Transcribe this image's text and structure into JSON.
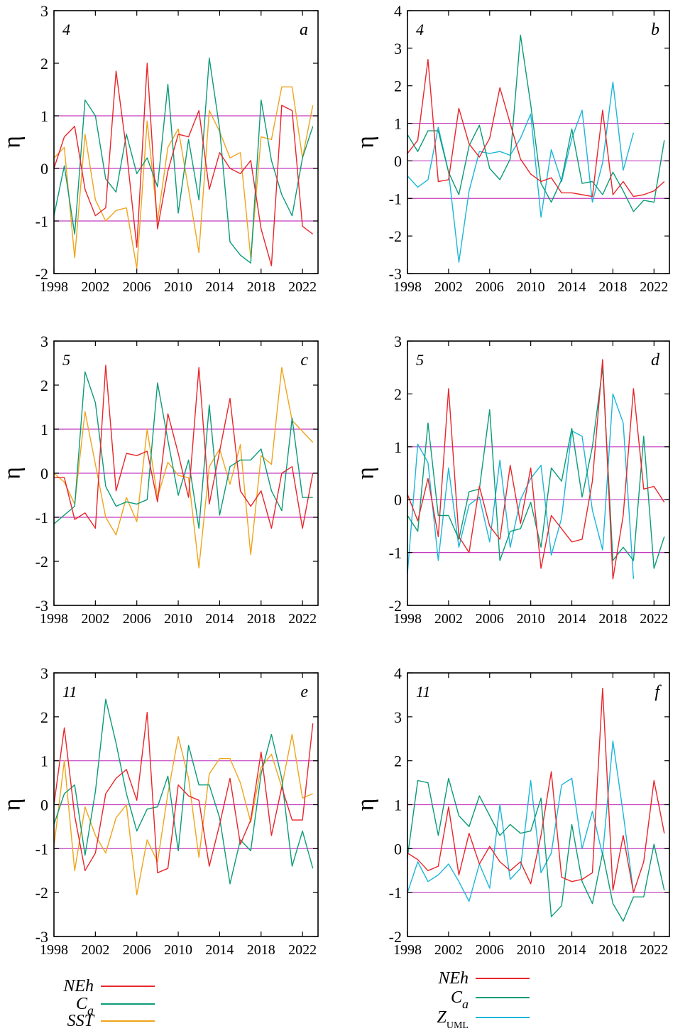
{
  "figure": {
    "background": "#ffffff"
  },
  "colors": {
    "NEh": "#e8262a",
    "Ca": "#0b9b78",
    "SST": "#f0a41c",
    "ZUML": "#1cb6d8",
    "hline": "#c33cc0",
    "axis": "#000000"
  },
  "legend_left": [
    {
      "main": "NEh",
      "sub": "",
      "color_key": "NEh"
    },
    {
      "main": "C",
      "sub": "a",
      "color_key": "Ca"
    },
    {
      "main": "SST",
      "sub": "",
      "color_key": "SST"
    }
  ],
  "legend_right": [
    {
      "main": "NEh",
      "sub": "",
      "color_key": "NEh"
    },
    {
      "main": "C",
      "sub": "a",
      "color_key": "Ca"
    },
    {
      "main": "Z",
      "sub": "UML",
      "color_key": "ZUML"
    }
  ],
  "chart_data": [
    {
      "id": "a",
      "type": "line",
      "panel_letter": "a",
      "month_label": "4",
      "ylabel": "η",
      "ylim": [
        -2,
        3
      ],
      "yticks": [
        "-2",
        "-1",
        "0",
        "1",
        "2",
        "3"
      ],
      "xlim": [
        1998,
        2023.5
      ],
      "xticks": [
        "1998",
        "2002",
        "2006",
        "2010",
        "2014",
        "2018",
        "2022"
      ],
      "hlines": [
        -1,
        0,
        1
      ],
      "x": [
        1998,
        1999,
        2000,
        2001,
        2002,
        2003,
        2004,
        2005,
        2006,
        2007,
        2008,
        2009,
        2010,
        2011,
        2012,
        2013,
        2014,
        2015,
        2016,
        2017,
        2018,
        2019,
        2020,
        2021,
        2022,
        2023
      ],
      "series": [
        {
          "key": "SST",
          "values": [
            0.2,
            0.4,
            -1.7,
            0.65,
            -0.6,
            -1.0,
            -0.8,
            -0.75,
            -1.9,
            0.9,
            -1.0,
            0.4,
            0.75,
            -0.4,
            -1.6,
            1.1,
            0.7,
            0.2,
            0.3,
            -1.7,
            0.6,
            0.55,
            1.55,
            1.55,
            0.2,
            1.2
          ]
        },
        {
          "key": "Ca",
          "values": [
            -0.9,
            0.05,
            -1.25,
            1.3,
            1.0,
            -0.2,
            -0.45,
            0.65,
            -0.1,
            0.2,
            -0.35,
            1.6,
            -0.85,
            0.55,
            -0.6,
            2.1,
            0.75,
            -1.4,
            -1.65,
            -1.8,
            1.3,
            0.15,
            -0.5,
            -0.9,
            0.2,
            0.8
          ]
        },
        {
          "key": "NEh",
          "values": [
            0.0,
            0.6,
            0.8,
            -0.4,
            -0.9,
            -0.75,
            1.85,
            0.35,
            -1.5,
            2.0,
            -1.15,
            -0.05,
            0.65,
            0.6,
            1.1,
            -0.4,
            0.3,
            0.0,
            -0.1,
            0.15,
            -1.15,
            -1.85,
            1.2,
            1.1,
            -1.1,
            -1.25
          ]
        }
      ]
    },
    {
      "id": "b",
      "type": "line",
      "panel_letter": "b",
      "month_label": "4",
      "ylabel": "η",
      "ylim": [
        -3,
        4
      ],
      "yticks": [
        "-3",
        "-2",
        "-1",
        "0",
        "1",
        "2",
        "3",
        "4"
      ],
      "xlim": [
        1998,
        2023.5
      ],
      "xticks": [
        "1998",
        "2002",
        "2006",
        "2010",
        "2014",
        "2018",
        "2022"
      ],
      "hlines": [
        -1,
        0,
        1
      ],
      "x": [
        1998,
        1999,
        2000,
        2001,
        2002,
        2003,
        2004,
        2005,
        2006,
        2007,
        2008,
        2009,
        2010,
        2011,
        2012,
        2013,
        2014,
        2015,
        2016,
        2017,
        2018,
        2019,
        2020,
        2021,
        2022,
        2023
      ],
      "series": [
        {
          "key": "ZUML",
          "x": [
            1998,
            1999,
            2000,
            2001,
            2002,
            2003,
            2004,
            2005,
            2006,
            2007,
            2008,
            2009,
            2010,
            2011,
            2012,
            2013,
            2014,
            2015,
            2016,
            2017,
            2018,
            2019,
            2020
          ],
          "values": [
            -0.4,
            -0.7,
            -0.5,
            0.9,
            -0.3,
            -2.7,
            -0.8,
            0.25,
            0.2,
            0.25,
            0.15,
            0.6,
            1.25,
            -1.5,
            0.3,
            -0.55,
            0.6,
            1.35,
            -1.1,
            -0.05,
            2.1,
            -0.25,
            0.75
          ]
        },
        {
          "key": "Ca",
          "values": [
            0.7,
            0.25,
            0.8,
            0.8,
            -0.3,
            -0.9,
            0.4,
            0.95,
            -0.2,
            -0.5,
            0.05,
            3.35,
            1.5,
            -0.6,
            -1.1,
            -0.5,
            0.85,
            -0.6,
            -0.55,
            -0.9,
            -0.3,
            -0.8,
            -1.35,
            -1.05,
            -1.1,
            0.55
          ]
        },
        {
          "key": "NEh",
          "values": [
            0.2,
            0.55,
            2.7,
            -0.55,
            -0.5,
            1.4,
            0.45,
            0.1,
            0.6,
            1.95,
            1.0,
            0.05,
            -0.35,
            -0.55,
            -0.45,
            -0.85,
            -0.85,
            -0.9,
            -0.95,
            1.35,
            -0.9,
            -0.55,
            -0.95,
            -0.9,
            -0.8,
            -0.55
          ]
        }
      ]
    },
    {
      "id": "c",
      "type": "line",
      "panel_letter": "c",
      "month_label": "5",
      "ylabel": "η",
      "ylim": [
        -3,
        3
      ],
      "yticks": [
        "-3",
        "-2",
        "-1",
        "0",
        "1",
        "2",
        "3"
      ],
      "xlim": [
        1998,
        2023.5
      ],
      "xticks": [
        "1998",
        "2002",
        "2006",
        "2010",
        "2014",
        "2018",
        "2022"
      ],
      "hlines": [
        -1,
        0,
        1
      ],
      "x": [
        1998,
        1999,
        2000,
        2001,
        2002,
        2003,
        2004,
        2005,
        2006,
        2007,
        2008,
        2009,
        2010,
        2011,
        2012,
        2013,
        2014,
        2015,
        2016,
        2017,
        2018,
        2019,
        2020,
        2021,
        2022,
        2023
      ],
      "series": [
        {
          "key": "SST",
          "values": [
            0.0,
            -0.2,
            -0.7,
            1.4,
            0.2,
            -1.0,
            -1.4,
            -0.55,
            -1.1,
            1.0,
            -0.55,
            0.25,
            -0.05,
            -0.1,
            -2.15,
            0.15,
            0.55,
            -0.25,
            0.65,
            -1.85,
            0.4,
            0.2,
            2.4,
            1.2,
            0.95,
            0.7
          ]
        },
        {
          "key": "Ca",
          "values": [
            -1.15,
            -0.95,
            -0.75,
            2.3,
            1.6,
            -0.3,
            -0.75,
            -0.65,
            -0.7,
            -0.6,
            2.05,
            0.75,
            -0.5,
            0.3,
            -1.25,
            1.55,
            -0.95,
            0.15,
            0.3,
            0.3,
            0.55,
            -0.4,
            -0.85,
            1.25,
            -0.55,
            -0.55
          ]
        },
        {
          "key": "NEh",
          "values": [
            -0.1,
            -0.1,
            -1.05,
            -0.9,
            -1.25,
            2.45,
            -0.4,
            0.45,
            0.4,
            0.5,
            -0.65,
            1.35,
            0.45,
            -0.55,
            2.4,
            -0.7,
            0.5,
            1.7,
            -0.4,
            -0.75,
            -0.4,
            -1.25,
            0.0,
            0.15,
            -1.25,
            0.0
          ]
        }
      ]
    },
    {
      "id": "d",
      "type": "line",
      "panel_letter": "d",
      "month_label": "5",
      "ylabel": "η",
      "ylim": [
        -2,
        3
      ],
      "yticks": [
        "-2",
        "-1",
        "0",
        "1",
        "2",
        "3"
      ],
      "xlim": [
        1998,
        2023.5
      ],
      "xticks": [
        "1998",
        "2002",
        "2006",
        "2010",
        "2014",
        "2018",
        "2022"
      ],
      "hlines": [
        -1,
        0,
        1
      ],
      "x": [
        1998,
        1999,
        2000,
        2001,
        2002,
        2003,
        2004,
        2005,
        2006,
        2007,
        2008,
        2009,
        2010,
        2011,
        2012,
        2013,
        2014,
        2015,
        2016,
        2017,
        2018,
        2019,
        2020,
        2021,
        2022,
        2023
      ],
      "series": [
        {
          "key": "ZUML",
          "x": [
            1998,
            1999,
            2000,
            2001,
            2002,
            2003,
            2004,
            2005,
            2006,
            2007,
            2008,
            2009,
            2010,
            2011,
            2012,
            2013,
            2014,
            2015,
            2016,
            2017,
            2018,
            2019,
            2020
          ],
          "values": [
            -1.4,
            1.05,
            0.7,
            -1.15,
            0.6,
            -0.9,
            -0.1,
            0.05,
            -0.8,
            0.75,
            -0.9,
            0.0,
            0.4,
            0.65,
            -1.05,
            -0.35,
            1.3,
            1.2,
            -0.2,
            -0.95,
            2.0,
            1.45,
            -1.5
          ]
        },
        {
          "key": "Ca",
          "values": [
            -0.3,
            -0.6,
            1.45,
            -0.3,
            -0.3,
            -0.75,
            0.15,
            0.2,
            1.7,
            -1.15,
            -0.6,
            -0.55,
            -0.05,
            -0.9,
            0.6,
            0.35,
            1.35,
            0.05,
            1.0,
            2.5,
            -1.15,
            -0.9,
            -1.15,
            1.2,
            -1.3,
            -0.7
          ]
        },
        {
          "key": "NEh",
          "values": [
            0.1,
            -0.4,
            0.4,
            -0.7,
            2.1,
            -0.7,
            -1.0,
            0.25,
            -0.5,
            -0.75,
            0.65,
            -0.45,
            0.6,
            -1.3,
            -0.3,
            -0.55,
            -0.8,
            -0.75,
            0.35,
            2.65,
            -1.5,
            -0.3,
            2.1,
            0.2,
            0.25,
            -0.05
          ]
        }
      ]
    },
    {
      "id": "e",
      "type": "line",
      "panel_letter": "e",
      "month_label": "11",
      "ylabel": "η",
      "ylim": [
        -3,
        3
      ],
      "yticks": [
        "-3",
        "-2",
        "-1",
        "0",
        "1",
        "2",
        "3"
      ],
      "xlim": [
        1998,
        2023.5
      ],
      "xticks": [
        "1998",
        "2002",
        "2006",
        "2010",
        "2014",
        "2018",
        "2022"
      ],
      "hlines": [
        -1,
        0,
        1
      ],
      "x": [
        1998,
        1999,
        2000,
        2001,
        2002,
        2003,
        2004,
        2005,
        2006,
        2007,
        2008,
        2009,
        2010,
        2011,
        2012,
        2013,
        2014,
        2015,
        2016,
        2017,
        2018,
        2019,
        2020,
        2021,
        2022,
        2023
      ],
      "series": [
        {
          "key": "SST",
          "values": [
            -0.95,
            1.0,
            -1.5,
            -0.05,
            -0.7,
            -1.1,
            -0.3,
            0.0,
            -2.05,
            -0.8,
            -1.3,
            0.25,
            1.55,
            0.6,
            -1.2,
            0.7,
            1.05,
            1.05,
            0.5,
            -0.4,
            0.85,
            1.15,
            0.4,
            1.6,
            0.15,
            0.25
          ]
        },
        {
          "key": "Ca",
          "values": [
            -0.45,
            0.25,
            0.45,
            -1.15,
            0.3,
            2.4,
            1.4,
            0.25,
            -0.6,
            -0.1,
            -0.05,
            0.65,
            -1.05,
            1.35,
            0.45,
            0.45,
            -0.3,
            -1.8,
            -0.8,
            -1.05,
            0.7,
            1.6,
            0.6,
            -1.4,
            -0.6,
            -1.45
          ]
        },
        {
          "key": "NEh",
          "values": [
            0.0,
            1.75,
            -0.25,
            -1.5,
            -1.1,
            0.25,
            0.6,
            0.8,
            0.1,
            2.1,
            -1.55,
            -1.45,
            0.45,
            0.2,
            0.1,
            -1.4,
            -0.45,
            0.6,
            -0.9,
            -0.35,
            1.2,
            -0.7,
            0.4,
            -0.35,
            -0.35,
            1.85
          ]
        }
      ]
    },
    {
      "id": "f",
      "type": "line",
      "panel_letter": "f",
      "month_label": "11",
      "ylabel": "η",
      "ylim": [
        -2,
        4
      ],
      "yticks": [
        "-2",
        "-1",
        "0",
        "1",
        "2",
        "3",
        "4"
      ],
      "xlim": [
        1998,
        2023.5
      ],
      "xticks": [
        "1998",
        "2002",
        "2006",
        "2010",
        "2014",
        "2018",
        "2022"
      ],
      "hlines": [
        -1,
        0,
        1
      ],
      "x": [
        1998,
        1999,
        2000,
        2001,
        2002,
        2003,
        2004,
        2005,
        2006,
        2007,
        2008,
        2009,
        2010,
        2011,
        2012,
        2013,
        2014,
        2015,
        2016,
        2017,
        2018,
        2019,
        2020,
        2021,
        2022,
        2023
      ],
      "series": [
        {
          "key": "ZUML",
          "x": [
            1998,
            1999,
            2000,
            2001,
            2002,
            2003,
            2004,
            2005,
            2006,
            2007,
            2008,
            2009,
            2010,
            2011,
            2012,
            2013,
            2014,
            2015,
            2016,
            2017,
            2018,
            2019,
            2020
          ],
          "values": [
            -1.0,
            -0.3,
            -0.75,
            -0.6,
            -0.35,
            -0.75,
            -1.2,
            -0.35,
            -0.9,
            1.0,
            -0.7,
            -0.45,
            1.55,
            -0.55,
            -0.1,
            1.45,
            1.6,
            0.0,
            0.85,
            -0.15,
            2.45,
            0.8,
            -1.0
          ]
        },
        {
          "key": "Ca",
          "values": [
            -0.2,
            1.55,
            1.5,
            0.3,
            1.6,
            0.75,
            0.5,
            1.2,
            0.75,
            0.3,
            0.55,
            0.35,
            0.4,
            1.15,
            -1.55,
            -1.3,
            0.55,
            -0.75,
            -1.25,
            -0.1,
            -1.25,
            -1.65,
            -1.1,
            -1.1,
            0.1,
            -0.95
          ]
        },
        {
          "key": "NEh",
          "values": [
            -0.1,
            -0.25,
            -0.5,
            -0.4,
            0.95,
            -0.6,
            0.35,
            -0.35,
            0.05,
            -0.3,
            -0.5,
            -0.3,
            -0.8,
            0.3,
            1.75,
            -0.65,
            -0.75,
            -0.7,
            -0.55,
            3.65,
            -0.95,
            0.3,
            -1.0,
            -0.3,
            1.55,
            0.35
          ]
        }
      ]
    }
  ]
}
